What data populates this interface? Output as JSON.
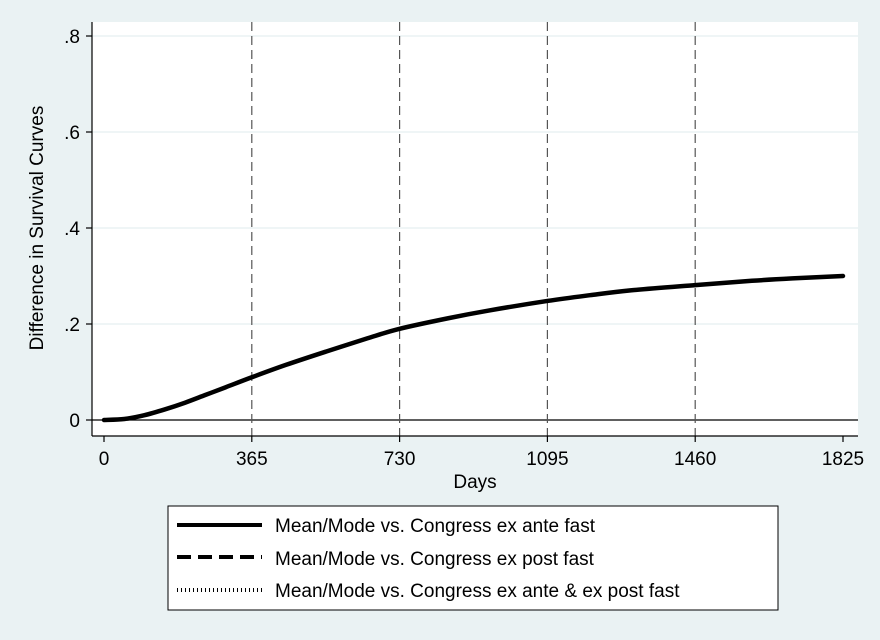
{
  "chart_data": {
    "type": "line",
    "xlabel": "Days",
    "ylabel": "Difference in Survival Curves",
    "xlim": [
      0,
      1825
    ],
    "ylim": [
      0,
      0.8
    ],
    "x_ticks": [
      0,
      365,
      730,
      1095,
      1460,
      1825
    ],
    "x_tick_labels": [
      "0",
      "365",
      "730",
      "1095",
      "1460",
      "1825"
    ],
    "y_ticks": [
      0,
      0.2,
      0.4,
      0.6,
      0.8
    ],
    "y_tick_labels": [
      "0",
      ".2",
      ".4",
      ".6",
      ".8"
    ],
    "reference_lines_x": [
      365,
      730,
      1095,
      1460
    ],
    "grid": true,
    "legend_position": "bottom",
    "colors": {
      "background": "#eaf2f3",
      "plot_background": "#ffffff",
      "grid": "#eaf2f3",
      "line": "#000000"
    },
    "series": [
      {
        "name": "Mean/Mode vs. Congress ex ante fast",
        "style": "solid",
        "x": [
          0,
          50,
          100,
          150,
          200,
          250,
          300,
          365,
          450,
          550,
          650,
          730,
          850,
          950,
          1095,
          1200,
          1300,
          1460,
          1600,
          1700,
          1825
        ],
        "y": [
          0.0,
          0.002,
          0.01,
          0.022,
          0.036,
          0.052,
          0.068,
          0.089,
          0.115,
          0.143,
          0.17,
          0.19,
          0.212,
          0.228,
          0.248,
          0.26,
          0.27,
          0.281,
          0.29,
          0.295,
          0.3
        ]
      },
      {
        "name": "Mean/Mode vs. Congress ex post fast",
        "style": "dashed",
        "x": [],
        "y": []
      },
      {
        "name": "Mean/Mode vs. Congress ex ante & ex post fast",
        "style": "dotted",
        "x": [],
        "y": []
      }
    ]
  }
}
